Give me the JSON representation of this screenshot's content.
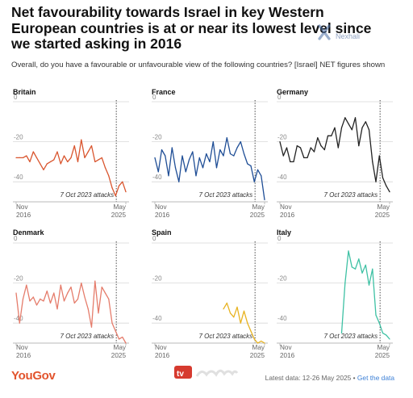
{
  "title": "Net favourability towards Israel in key Western European countries is at or near its lowest level since we started asking in 2016",
  "subtitle": "Overall, do you have a favourable or unfavourable view of the following countries? [Israel] NET figures shown",
  "watermark": "Nexhali",
  "footer": {
    "brand": "YouGov",
    "source_badge_text": "tv اپلود",
    "latest_data": "Latest data: 12-26 May 2025",
    "separator": " • ",
    "link_text": "Get the data"
  },
  "colors": {
    "Britain": "#d9552e",
    "France": "#1f4e96",
    "Germany": "#222222",
    "Denmark": "#e57c6b",
    "Spain": "#e8b321",
    "Italy": "#3ec1a4",
    "grid": "#d8d8d8",
    "axis": "#b8b8b8"
  },
  "chart_data": [
    {
      "type": "line",
      "country": "Britain",
      "x_tick_labels": [
        [
          "Nov",
          "2016"
        ],
        [
          "May",
          "2025"
        ]
      ],
      "y_ticks": [
        0,
        -20,
        -40
      ],
      "ylim": [
        -50,
        0
      ],
      "annotation": "7 Oct 2023 attacks",
      "values": [
        -28,
        -28,
        -28,
        -27,
        -30,
        -25,
        -28,
        -31,
        -34,
        -31,
        -30,
        -29,
        -25,
        -31,
        -27,
        -30,
        -28,
        -22,
        -30,
        -19,
        -28,
        -25,
        -22,
        -30,
        -29,
        -28,
        -33,
        -37,
        -43,
        -47,
        -42,
        -40,
        -45
      ]
    },
    {
      "type": "line",
      "country": "France",
      "x_tick_labels": [
        [
          "Nov",
          "2016"
        ],
        [
          "May",
          "2025"
        ]
      ],
      "y_ticks": [
        0,
        -20,
        -40
      ],
      "ylim": [
        -50,
        0
      ],
      "annotation": "7 Oct 2023 attacks",
      "values": [
        -28,
        -35,
        -24,
        -27,
        -37,
        -23,
        -33,
        -40,
        -27,
        -35,
        -29,
        -25,
        -37,
        -28,
        -33,
        -26,
        -30,
        -20,
        -33,
        -24,
        -27,
        -18,
        -26,
        -27,
        -23,
        -20,
        -26,
        -31,
        -32,
        -40,
        -34,
        -37,
        -49
      ]
    },
    {
      "type": "line",
      "country": "Germany",
      "x_tick_labels": [
        [
          "Nov",
          "2016"
        ],
        [
          "May",
          "2025"
        ]
      ],
      "y_ticks": [
        0,
        -20,
        -40
      ],
      "ylim": [
        -50,
        0
      ],
      "annotation": "7 Oct 2023 attacks",
      "values": [
        -20,
        -27,
        -23,
        -30,
        -30,
        -22,
        -23,
        -28,
        -28,
        -23,
        -25,
        -18,
        -22,
        -24,
        -17,
        -17,
        -13,
        -23,
        -13,
        -8,
        -11,
        -14,
        -8,
        -22,
        -13,
        -10,
        -14,
        -30,
        -40,
        -27,
        -38,
        -42,
        -45
      ]
    },
    {
      "type": "line",
      "country": "Denmark",
      "x_tick_labels": [
        [
          "Nov",
          "2016"
        ],
        [
          "May",
          "2025"
        ]
      ],
      "y_ticks": [
        0,
        -20,
        -40
      ],
      "ylim": [
        -50,
        0
      ],
      "annotation": "7 Oct 2023 attacks",
      "values": [
        -25,
        -40,
        -28,
        -21,
        -29,
        -27,
        -31,
        -28,
        -29,
        -24,
        -30,
        -25,
        -33,
        -21,
        -29,
        -25,
        -22,
        -30,
        -28,
        -20,
        -27,
        -33,
        -42,
        -19,
        -35,
        -22,
        -25,
        -28,
        -40,
        -44,
        -48,
        -47,
        -50
      ]
    },
    {
      "type": "line",
      "country": "Spain",
      "x_tick_labels": [
        [
          "Nov",
          "2016"
        ],
        [
          "May",
          "2025"
        ]
      ],
      "y_ticks": [
        0,
        -20,
        -40
      ],
      "ylim": [
        -50,
        0
      ],
      "annotation": "7 Oct 2023 attacks",
      "values": [
        null,
        null,
        null,
        null,
        null,
        null,
        null,
        null,
        null,
        null,
        null,
        null,
        null,
        null,
        null,
        null,
        null,
        null,
        null,
        null,
        -33,
        -30,
        -35,
        -37,
        -32,
        -40,
        -34,
        -40,
        -44,
        -48,
        -50,
        -49,
        -50
      ]
    },
    {
      "type": "line",
      "country": "Italy",
      "x_tick_labels": [
        [
          "Nov",
          "2016"
        ],
        [
          "May",
          "2025"
        ]
      ],
      "y_ticks": [
        0,
        -20,
        -40
      ],
      "ylim": [
        -50,
        0
      ],
      "annotation": "7 Oct 2023 attacks",
      "values": [
        null,
        null,
        null,
        null,
        null,
        null,
        null,
        null,
        null,
        null,
        null,
        null,
        null,
        null,
        null,
        null,
        null,
        null,
        -45,
        -20,
        -4,
        -12,
        -13,
        -8,
        -15,
        -11,
        -21,
        -13,
        -36,
        -40,
        -45,
        -46,
        -48
      ]
    }
  ]
}
